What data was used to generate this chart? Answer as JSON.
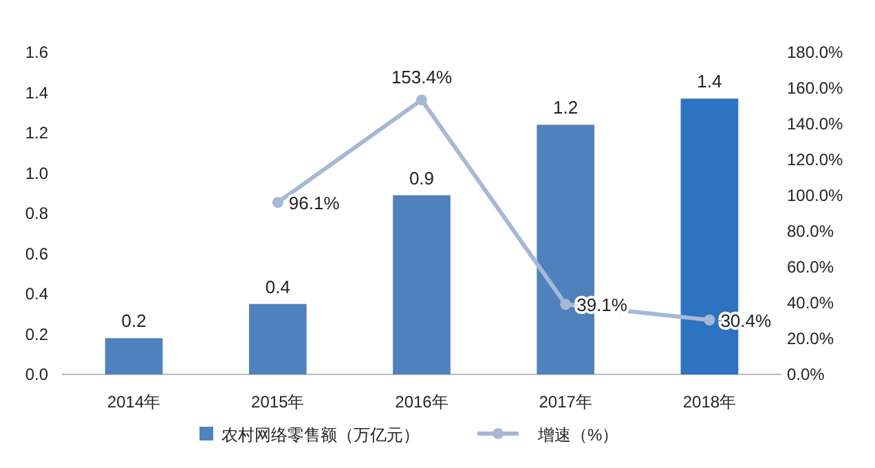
{
  "chart_data": {
    "type": "bar",
    "categories": [
      "2014年",
      "2015年",
      "2016年",
      "2017年",
      "2018年"
    ],
    "series": [
      {
        "name": "农村网络零售额（万亿元）",
        "colors": [
          "#4f81bd",
          "#4f81bd",
          "#4f81bd",
          "#4f81bd",
          "#2e72c2"
        ],
        "values": [
          0.18,
          0.35,
          0.89,
          1.24,
          1.37
        ],
        "value_labels": [
          "0.2",
          "0.4",
          "0.9",
          "1.2",
          "1.4"
        ]
      },
      {
        "name": "增速（%）",
        "type": "line",
        "axis": "y2",
        "color": "#a6b8d6",
        "marker": "circle",
        "values": [
          null,
          96.1,
          153.4,
          39.1,
          30.4
        ],
        "value_labels": [
          null,
          "96.1%",
          "153.4%",
          "39.1%",
          "30.4%"
        ]
      }
    ],
    "ylim": [
      0,
      1.6
    ],
    "yticks": [
      {
        "value": 0,
        "label": "0.0"
      },
      {
        "value": 0.2,
        "label": "0.2"
      },
      {
        "value": 0.4,
        "label": "0.4"
      },
      {
        "value": 0.6,
        "label": "0.6"
      },
      {
        "value": 0.8,
        "label": "0.8"
      },
      {
        "value": 1,
        "label": "1.0"
      },
      {
        "value": 1.2,
        "label": "1.2"
      },
      {
        "value": 1.4,
        "label": "1.4"
      },
      {
        "value": 1.6,
        "label": "1.6"
      }
    ],
    "y2lim": [
      0,
      180
    ],
    "y2ticks": [
      {
        "value": 0,
        "label": "0.0%"
      },
      {
        "value": 20,
        "label": "20.0%"
      },
      {
        "value": 40,
        "label": "40.0%"
      },
      {
        "value": 60,
        "label": "60.0%"
      },
      {
        "value": 80,
        "label": "80.0%"
      },
      {
        "value": 100,
        "label": "100.0%"
      },
      {
        "value": 120,
        "label": "120.0%"
      },
      {
        "value": 140,
        "label": "140.0%"
      },
      {
        "value": 160,
        "label": "160.0%"
      },
      {
        "value": 180,
        "label": "180.0%"
      }
    ],
    "legend": "bottom"
  }
}
